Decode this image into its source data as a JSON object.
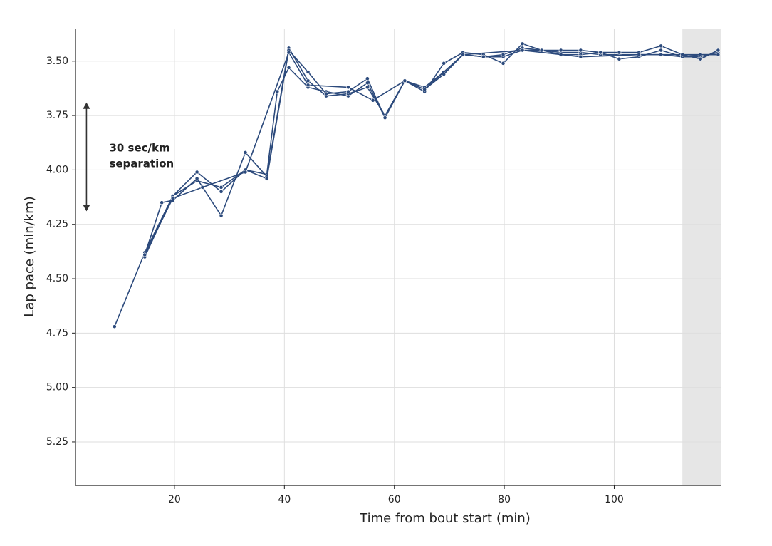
{
  "chart_data": {
    "type": "line",
    "xlabel": "Time from bout start (min)",
    "ylabel": "Lap pace (min/km)",
    "xlim": [
      2,
      119.5
    ],
    "ylim": [
      5.45,
      3.35
    ],
    "xticks": [
      20,
      40,
      60,
      80,
      100
    ],
    "yticks": [
      {
        "value": 3.5,
        "label": "3.50"
      },
      {
        "value": 3.75,
        "label": "3.75"
      },
      {
        "value": 4.0,
        "label": "4.00"
      },
      {
        "value": 4.25,
        "label": "4.25"
      },
      {
        "value": 4.5,
        "label": "4.50"
      },
      {
        "value": 4.75,
        "label": "4.75"
      },
      {
        "value": 5.0,
        "label": "5.00"
      },
      {
        "value": 5.25,
        "label": "5.25"
      }
    ],
    "grid": true,
    "shade_x": [
      112.4,
      119.5
    ],
    "shade_color": "#e6e6e6",
    "annotation": {
      "lines": [
        "30 sec/km",
        "separation"
      ],
      "arrow_x": 4.0,
      "arrow_y": [
        3.69,
        4.19
      ]
    },
    "series": [
      {
        "color": "#2c4a7c",
        "x": [
          9.1,
          14.6,
          19.7,
          24.1,
          28.5,
          32.9,
          36.8,
          38.7,
          40.8,
          44.3,
          47.6,
          51.6,
          55.1,
          58.3,
          61.9,
          65.5,
          69,
          72.5,
          76.2,
          79.8,
          83.3,
          86.8,
          90.3,
          93.9,
          97.5,
          100.9,
          104.5,
          108.5,
          112.4,
          115.7,
          118.9
        ],
        "values": [
          4.72,
          4.38,
          4.12,
          4.05,
          4.08,
          4.0,
          4.02,
          3.64,
          3.53,
          3.62,
          3.64,
          3.66,
          3.6,
          3.76,
          3.59,
          3.62,
          3.55,
          3.47,
          3.48,
          3.48,
          3.45,
          3.45,
          3.46,
          3.46,
          3.47,
          3.47,
          3.47,
          3.47,
          3.48,
          3.48,
          3.46
        ]
      },
      {
        "color": "#2c4a7c",
        "x": [
          14.6,
          17.7,
          19.7,
          24.1,
          28.5,
          32.9,
          36.8,
          40.8,
          44.3,
          47.6,
          51.6,
          55.1,
          58.3,
          61.9,
          65.5,
          69,
          72.5,
          76.2,
          79.8,
          83.3,
          86.8,
          90.3,
          93.9,
          97.5,
          100.9,
          104.5,
          108.5,
          112.4,
          115.7,
          118.9
        ],
        "values": [
          4.39,
          4.15,
          4.14,
          4.04,
          4.21,
          3.92,
          4.03,
          3.44,
          3.59,
          3.66,
          3.65,
          3.62,
          3.75,
          3.59,
          3.64,
          3.51,
          3.46,
          3.47,
          3.51,
          3.42,
          3.45,
          3.45,
          3.45,
          3.46,
          3.46,
          3.46,
          3.43,
          3.47,
          3.49,
          3.45
        ]
      },
      {
        "color": "#2c4a7c",
        "x": [
          14.6,
          19.7,
          24.1,
          28.5,
          32.9,
          36.8,
          40.8,
          44.3,
          47.6,
          51.6,
          55.1,
          58.3,
          61.9,
          65.5,
          69,
          72.5,
          76.2,
          79.8,
          83.3,
          86.8,
          90.3,
          93.9,
          97.5,
          100.9,
          104.5,
          108.5,
          112.4,
          115.7,
          118.9
        ],
        "values": [
          4.4,
          4.12,
          4.01,
          4.1,
          4.0,
          4.04,
          3.45,
          3.55,
          3.65,
          3.64,
          3.58,
          3.76,
          3.59,
          3.63,
          3.56,
          3.47,
          3.48,
          3.47,
          3.44,
          3.45,
          3.47,
          3.47,
          3.46,
          3.49,
          3.48,
          3.45,
          3.48,
          3.47,
          3.47
        ]
      },
      {
        "color": "#2c4a7c",
        "x": [
          14.6,
          19.7,
          25.1,
          32.9,
          40.8,
          44.3,
          51.6,
          56.1,
          61.9,
          65.5,
          72.5,
          83.3,
          93.9,
          104.5,
          112.4,
          118.9
        ],
        "values": [
          4.39,
          4.13,
          4.08,
          4.01,
          3.46,
          3.61,
          3.62,
          3.68,
          3.59,
          3.63,
          3.47,
          3.45,
          3.48,
          3.47,
          3.47,
          3.47
        ]
      }
    ]
  }
}
